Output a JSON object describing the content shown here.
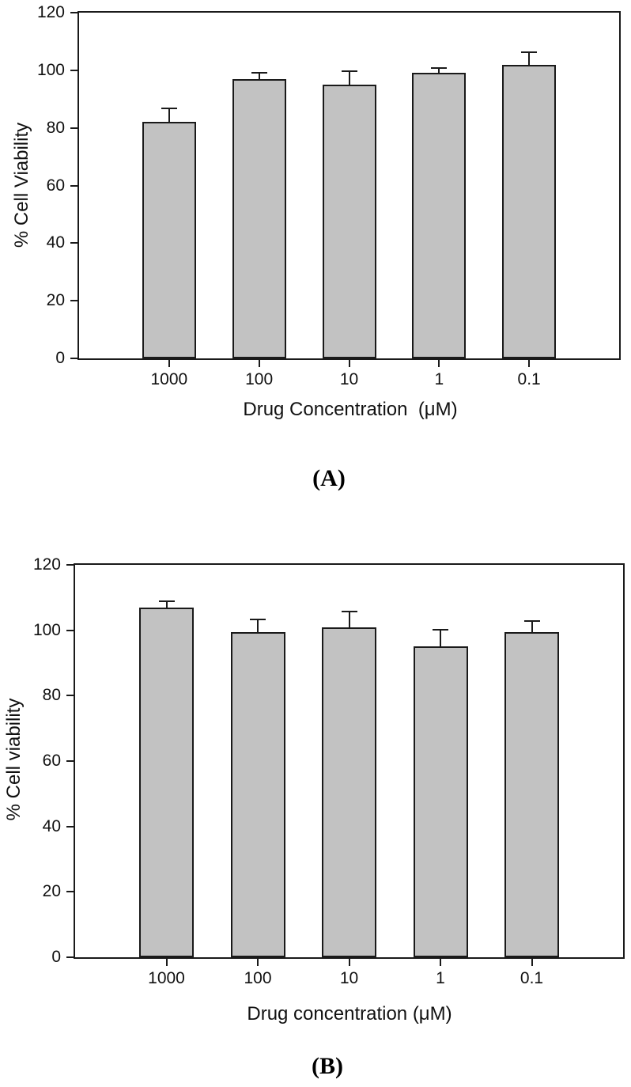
{
  "figure": {
    "background": "#ffffff",
    "text_color": "#111111"
  },
  "chart_data": [
    {
      "type": "bar",
      "panel_label": "(A)",
      "title": "",
      "xlabel": "Drug Concentration  (μM)",
      "ylabel": "% Cell Viability",
      "categories": [
        "1000",
        "100",
        "10",
        "1",
        "0.1"
      ],
      "values": [
        82,
        97,
        95,
        99,
        102
      ],
      "errors_plus": [
        5,
        2.5,
        5,
        2,
        4.5
      ],
      "ylim": [
        0,
        120
      ],
      "yticks": [
        0,
        20,
        40,
        60,
        80,
        100,
        120
      ],
      "grid": false,
      "legend": "none",
      "bar_fill": "#c2c2c2",
      "bar_edge": "#1a1a1a",
      "axis_box": true
    },
    {
      "type": "bar",
      "panel_label": "(B)",
      "title": "",
      "xlabel": "Drug concentration (μM)",
      "ylabel": "% Cell viability",
      "categories": [
        "1000",
        "100",
        "10",
        "1",
        "0.1"
      ],
      "values": [
        107,
        99.5,
        101,
        95,
        99.5
      ],
      "errors_plus": [
        2,
        4,
        5,
        5.5,
        3.5
      ],
      "ylim": [
        0,
        120
      ],
      "yticks": [
        0,
        20,
        40,
        60,
        80,
        100,
        120
      ],
      "grid": false,
      "legend": "none",
      "bar_fill": "#c2c2c2",
      "bar_edge": "#1a1a1a",
      "axis_box": true
    }
  ]
}
